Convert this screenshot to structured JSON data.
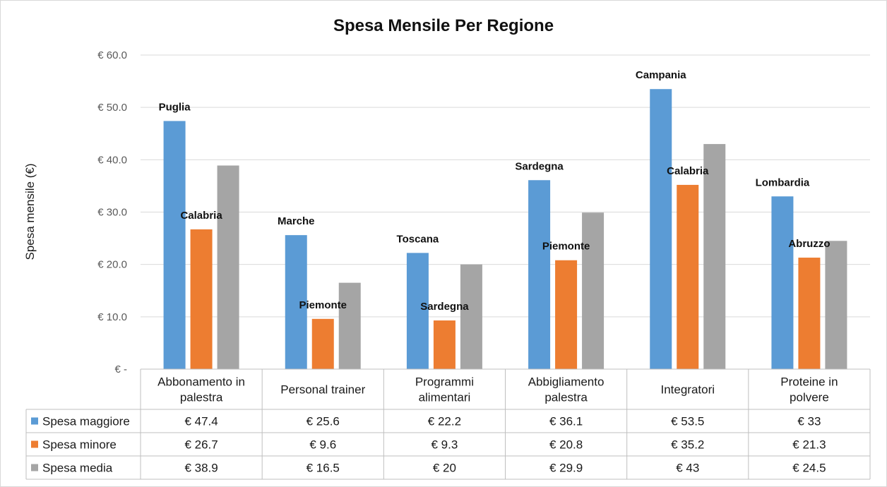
{
  "chart_data": {
    "type": "bar",
    "title": "Spesa Mensile Per Regione",
    "xlabel": "",
    "ylabel": "Spesa mensile (€)",
    "ylim": [
      0,
      60
    ],
    "yticks": [
      0,
      10,
      20,
      30,
      40,
      50,
      60
    ],
    "ytick_labels": [
      "€ -",
      "€ 10.0",
      "€ 20.0",
      "€ 30.0",
      "€ 40.0",
      "€ 50.0",
      "€ 60.0"
    ],
    "grid": true,
    "legend": "data-table",
    "categories": [
      [
        "Abbonamento in",
        "palestra"
      ],
      [
        "Personal trainer"
      ],
      [
        "Programmi",
        "alimentari"
      ],
      [
        "Abbigliamento",
        "palestra"
      ],
      [
        "Integratori"
      ],
      [
        "Proteine in",
        "polvere"
      ]
    ],
    "series": [
      {
        "name": "Spesa maggiore",
        "color": "#5b9bd5",
        "values": [
          47.4,
          25.6,
          22.2,
          36.1,
          53.5,
          33
        ],
        "table_values": [
          "€ 47.4",
          "€ 25.6",
          "€ 22.2",
          "€ 36.1",
          "€ 53.5",
          "€ 33"
        ],
        "bar_labels": [
          "Puglia",
          "Marche",
          "Toscana",
          "Sardegna",
          "Campania",
          "Lombardia"
        ]
      },
      {
        "name": "Spesa minore",
        "color": "#ed7d31",
        "values": [
          26.7,
          9.6,
          9.3,
          20.8,
          35.2,
          21.3
        ],
        "table_values": [
          "€ 26.7",
          "€ 9.6",
          "€ 9.3",
          "€ 20.8",
          "€ 35.2",
          "€ 21.3"
        ],
        "bar_labels": [
          "Calabria",
          "Piemonte",
          "Sardegna",
          "Piemonte",
          "Calabria",
          "Abruzzo"
        ]
      },
      {
        "name": "Spesa media",
        "color": "#a5a5a5",
        "values": [
          38.9,
          16.5,
          20,
          29.9,
          43,
          24.5
        ],
        "table_values": [
          "€ 38.9",
          "€ 16.5",
          "€ 20",
          "€ 29.9",
          "€ 43",
          "€ 24.5"
        ],
        "bar_labels": []
      }
    ]
  }
}
